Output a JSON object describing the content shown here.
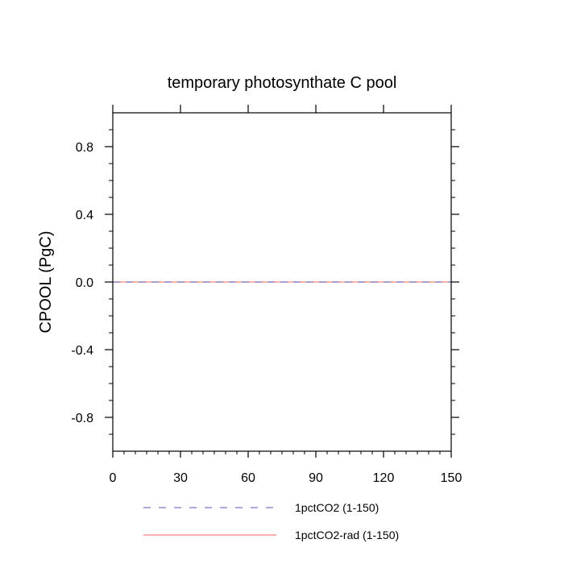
{
  "chart_data": {
    "type": "line",
    "title": "temporary photosynthate C pool",
    "xlabel": "",
    "ylabel": "CPOOL  (PgC)",
    "xlim": [
      0,
      150
    ],
    "ylim": [
      -1,
      1
    ],
    "x_ticks": [
      0,
      30,
      60,
      90,
      120,
      150
    ],
    "x_tick_labels": [
      "0",
      "30",
      "60",
      "90",
      "120",
      "150"
    ],
    "y_ticks": [
      -0.8,
      -0.4,
      0.0,
      0.4,
      0.8
    ],
    "y_tick_labels": [
      "-0.8",
      "-0.4",
      "0.0",
      "0.4",
      "0.8"
    ],
    "grid": false,
    "legend_position": "bottom",
    "series": [
      {
        "name": "1pctCO2 (1-150)",
        "color": "#7d70c8",
        "style": "dashed",
        "x": [
          0,
          150
        ],
        "y": [
          0,
          0
        ]
      },
      {
        "name": "1pctCO2-rad (1-150)",
        "color": "#f08080",
        "style": "solid",
        "x": [
          0,
          150
        ],
        "y": [
          0,
          0
        ]
      }
    ]
  }
}
